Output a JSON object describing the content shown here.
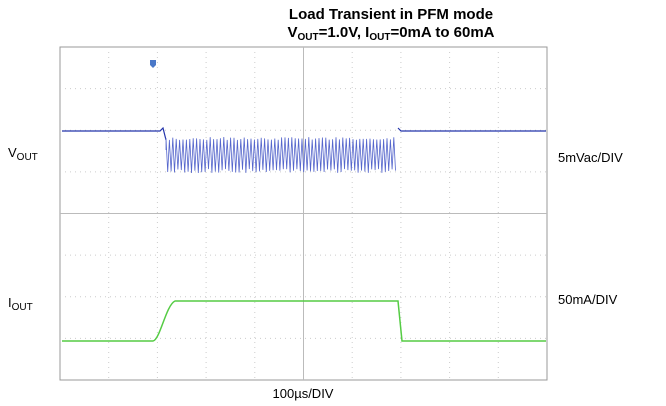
{
  "title": "Load Transient in PFM mode",
  "subtitle": {
    "v": "V",
    "v_sub": "OUT",
    "mid": "=1.0V, I",
    "i_sub": "OUT",
    "end": "=0mA to 60mA"
  },
  "channel_labels": {
    "vout": {
      "main": "V",
      "sub": "OUT"
    },
    "iout": {
      "main": "I",
      "sub": "OUT"
    }
  },
  "scales": {
    "vout": "5mVac/DIV",
    "iout": "50mA/DIV",
    "time": "100µs/DIV"
  }
}
